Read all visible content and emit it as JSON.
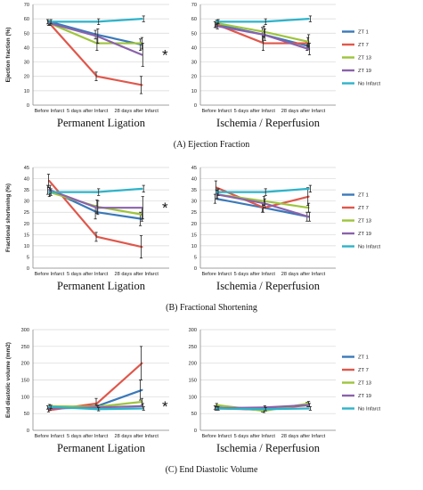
{
  "colors": {
    "ZT 1": "#3a79b9",
    "ZT 7": "#e0574b",
    "ZT 13": "#9ec43c",
    "ZT 19": "#8a62ab",
    "No Infarct": "#2db3c9"
  },
  "chart_data": [
    {
      "id": "A",
      "type": "line",
      "caption": "(A) Ejection Fraction",
      "ylabel": "Ejection fraction (%)",
      "ylim": [
        0,
        70
      ],
      "yticks": [
        0,
        10,
        20,
        30,
        40,
        50,
        60,
        70
      ],
      "legend_position": "right",
      "categories": [
        "Before Infarct",
        "5 days after Infarct",
        "28 days after Infarct"
      ],
      "panels": [
        {
          "label": "Permanent Ligation",
          "significance_marker": "*",
          "series": [
            {
              "name": "ZT 1",
              "values": [
                58,
                49,
                42
              ],
              "errors": [
                1.5,
                3,
                4
              ]
            },
            {
              "name": "ZT 7",
              "values": [
                57,
                20,
                14
              ],
              "errors": [
                1.5,
                3,
                6
              ]
            },
            {
              "name": "ZT 13",
              "values": [
                57,
                43,
                43
              ],
              "errors": [
                1.5,
                5,
                4
              ]
            },
            {
              "name": "ZT 19",
              "values": [
                57,
                48,
                35
              ],
              "errors": [
                1.5,
                5,
                8
              ]
            },
            {
              "name": "No Infarct",
              "values": [
                58,
                58,
                60
              ],
              "errors": [
                1.5,
                2,
                2
              ]
            }
          ]
        },
        {
          "label": "Ischemia / Reperfusion",
          "significance_marker": "",
          "series": [
            {
              "name": "ZT 1",
              "values": [
                56,
                49,
                41
              ],
              "errors": [
                2,
                5,
                3
              ]
            },
            {
              "name": "ZT 7",
              "values": [
                56,
                43,
                43
              ],
              "errors": [
                2,
                5,
                4
              ]
            },
            {
              "name": "ZT 13",
              "values": [
                57,
                51,
                44
              ],
              "errors": [
                2,
                4,
                5
              ]
            },
            {
              "name": "ZT 19",
              "values": [
                55,
                49,
                39
              ],
              "errors": [
                2,
                4,
                4
              ]
            },
            {
              "name": "No Infarct",
              "values": [
                58,
                58,
                60
              ],
              "errors": [
                1.5,
                2,
                2
              ]
            }
          ]
        }
      ]
    },
    {
      "id": "B",
      "type": "line",
      "caption": "(B) Fractional Shortening",
      "ylabel": "Fractional shortening (%)",
      "ylim": [
        0,
        45
      ],
      "yticks": [
        0,
        5,
        10,
        15,
        20,
        25,
        30,
        35,
        40,
        45
      ],
      "legend_position": "right",
      "categories": [
        "Before Infarct",
        "5 days after Infarct",
        "28 days after Infarct"
      ],
      "panels": [
        {
          "label": "Permanent Ligation",
          "significance_marker": "*",
          "series": [
            {
              "name": "ZT 1",
              "values": [
                35,
                25,
                22
              ],
              "errors": [
                2,
                3,
                3
              ]
            },
            {
              "name": "ZT 7",
              "values": [
                39,
                14,
                9.5
              ],
              "errors": [
                3,
                2,
                5
              ]
            },
            {
              "name": "ZT 13",
              "values": [
                34,
                27.5,
                24
              ],
              "errors": [
                2,
                3,
                3
              ]
            },
            {
              "name": "ZT 19",
              "values": [
                35,
                27,
                27
              ],
              "errors": [
                2,
                3,
                5
              ]
            },
            {
              "name": "No Infarct",
              "values": [
                34,
                34,
                35.5
              ],
              "errors": [
                1.5,
                1.5,
                1.5
              ]
            }
          ]
        },
        {
          "label": "Ischemia / Reperfusion",
          "significance_marker": "",
          "series": [
            {
              "name": "ZT 1",
              "values": [
                31,
                27,
                23
              ],
              "errors": [
                2,
                2,
                2
              ]
            },
            {
              "name": "ZT 7",
              "values": [
                36,
                27,
                32
              ],
              "errors": [
                3,
                2,
                4
              ]
            },
            {
              "name": "ZT 13",
              "values": [
                33,
                30,
                27
              ],
              "errors": [
                2,
                2,
                2
              ]
            },
            {
              "name": "ZT 19",
              "values": [
                33,
                29,
                23
              ],
              "errors": [
                2,
                2,
                2
              ]
            },
            {
              "name": "No Infarct",
              "values": [
                34,
                34,
                35.5
              ],
              "errors": [
                1.5,
                1.5,
                1.5
              ]
            }
          ]
        }
      ]
    },
    {
      "id": "C",
      "type": "line",
      "caption": "(C) End Diastolic Volume",
      "ylabel": "End diastolic volume (mm2)",
      "ylim": [
        0,
        300
      ],
      "yticks": [
        0,
        50,
        100,
        150,
        200,
        250,
        300
      ],
      "legend_position": "right",
      "categories": [
        "Before Infarct",
        "5 days after Infarct",
        "28 days after Infarct"
      ],
      "panels": [
        {
          "label": "Permanent Ligation",
          "significance_marker": "*",
          "series": [
            {
              "name": "ZT 1",
              "values": [
                68,
                72,
                120
              ],
              "errors": [
                5,
                8,
                30
              ]
            },
            {
              "name": "ZT 7",
              "values": [
                60,
                80,
                200
              ],
              "errors": [
                5,
                15,
                50
              ]
            },
            {
              "name": "ZT 13",
              "values": [
                72,
                70,
                85
              ],
              "errors": [
                5,
                5,
                10
              ]
            },
            {
              "name": "ZT 19",
              "values": [
                65,
                68,
                72
              ],
              "errors": [
                5,
                5,
                8
              ]
            },
            {
              "name": "No Infarct",
              "values": [
                70,
                63,
                65
              ],
              "errors": [
                5,
                5,
                5
              ]
            }
          ]
        },
        {
          "label": "Ischemia / Reperfusion",
          "significance_marker": "",
          "series": [
            {
              "name": "ZT 1",
              "values": [
                68,
                60,
                78
              ],
              "errors": [
                5,
                5,
                5
              ]
            },
            {
              "name": "ZT 7",
              "values": [
                65,
                62,
                75
              ],
              "errors": [
                5,
                5,
                5
              ]
            },
            {
              "name": "ZT 13",
              "values": [
                75,
                58,
                80
              ],
              "errors": [
                5,
                5,
                6
              ]
            },
            {
              "name": "ZT 19",
              "values": [
                66,
                68,
                75
              ],
              "errors": [
                5,
                5,
                5
              ]
            },
            {
              "name": "No Infarct",
              "values": [
                65,
                63,
                65
              ],
              "errors": [
                5,
                5,
                5
              ]
            }
          ]
        }
      ]
    }
  ]
}
